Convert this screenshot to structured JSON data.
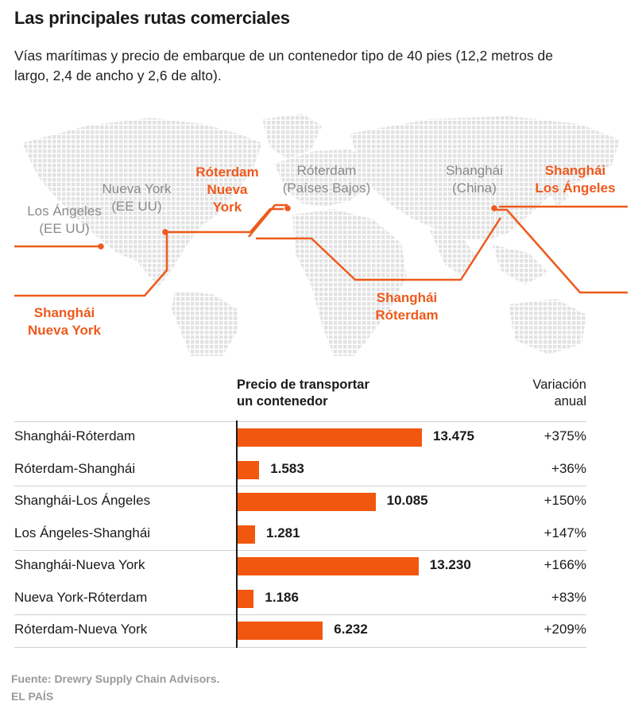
{
  "title": "Las principales rutas comerciales",
  "subtitle": "Vías marítimas y precio de embarque de un contenedor tipo de 40 pies (12,2 metros de largo, 2,4 de ancho y 2,6 de alto).",
  "map": {
    "labels": {
      "los_angeles": "Los Ángeles\n(EE UU)",
      "nueva_york": "Nueva York\n(EE UU)",
      "rotterdam_ny": "Róterdam\nNueva\nYork",
      "rotterdam": "Róterdam\n(Países Bajos)",
      "shanghai": "Shanghái\n(China)",
      "shanghai_la": "Shanghái\nLos Ángeles",
      "shanghai_ny": "Shanghái\nNueva York",
      "shanghai_rot": "Shanghái\nRóterdam"
    },
    "colors": {
      "route": "#ee5a1c",
      "land": "#e3e3e3"
    }
  },
  "chart_data": {
    "type": "bar",
    "orientation": "horizontal",
    "column_headers": {
      "price": "Precio de transportar\nun contenedor",
      "variation": "Variación\nanual"
    },
    "categories": [
      "Shanghái-Róterdam",
      "Róterdam-Shanghái",
      "Shanghái-Los Ángeles",
      "Los Ángeles-Shanghái",
      "Shanghái-Nueva York",
      "Nueva York-Róterdam",
      "Róterdam-Nueva York"
    ],
    "values": [
      13475,
      1583,
      10085,
      1281,
      13230,
      1186,
      6232
    ],
    "value_labels": [
      "13.475",
      "1.583",
      "10.085",
      "1.281",
      "13.230",
      "1.186",
      "6.232"
    ],
    "variation": [
      "+375%",
      "+36%",
      "+150%",
      "+147%",
      "+166%",
      "+83%",
      "+209%"
    ],
    "bar_color": "#f2570f"
  },
  "source": "Fuente: Drewry Supply Chain Advisors.",
  "credit": "EL PAÍS"
}
